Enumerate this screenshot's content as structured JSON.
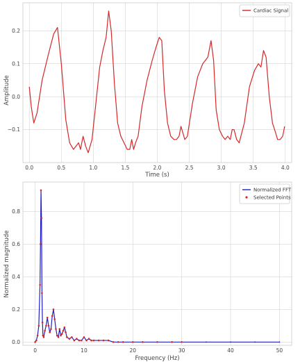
{
  "chart_data": [
    {
      "type": "line",
      "xlabel": "Time (s)",
      "ylabel": "Amplitude",
      "xlim": [
        -0.1,
        4.1
      ],
      "ylim": [
        -0.2,
        0.285
      ],
      "xticks": [
        0.0,
        0.5,
        1.0,
        1.5,
        2.0,
        2.5,
        3.0,
        3.5,
        4.0
      ],
      "xtick_labels": [
        "0.0",
        "0.5",
        "1.0",
        "1.5",
        "2.0",
        "2.5",
        "3.0",
        "3.5",
        "4.0"
      ],
      "yticks": [
        -0.1,
        0.0,
        0.1,
        0.2
      ],
      "ytick_labels": [
        "−0.1",
        "0.0",
        "0.1",
        "0.2"
      ],
      "grid": true,
      "legend_position": "top-right",
      "series": [
        {
          "name": "Cardiac Signal",
          "color": "#d62728",
          "x": [
            0.0,
            0.03,
            0.07,
            0.12,
            0.2,
            0.3,
            0.38,
            0.44,
            0.5,
            0.57,
            0.63,
            0.69,
            0.73,
            0.77,
            0.8,
            0.84,
            0.88,
            0.92,
            0.98,
            1.04,
            1.1,
            1.15,
            1.2,
            1.24,
            1.28,
            1.33,
            1.38,
            1.43,
            1.48,
            1.53,
            1.57,
            1.6,
            1.63,
            1.66,
            1.7,
            1.76,
            1.84,
            1.92,
            1.98,
            2.03,
            2.07,
            2.11,
            2.16,
            2.21,
            2.26,
            2.3,
            2.34,
            2.37,
            2.4,
            2.43,
            2.47,
            2.55,
            2.63,
            2.71,
            2.79,
            2.84,
            2.88,
            2.92,
            2.97,
            3.02,
            3.06,
            3.1,
            3.14,
            3.17,
            3.2,
            3.24,
            3.28,
            3.36,
            3.44,
            3.52,
            3.58,
            3.62,
            3.66,
            3.7,
            3.75,
            3.8,
            3.85,
            3.88,
            3.92,
            3.96,
            3.99
          ],
          "y": [
            0.03,
            -0.03,
            -0.08,
            -0.05,
            0.05,
            0.13,
            0.19,
            0.21,
            0.1,
            -0.07,
            -0.14,
            -0.16,
            -0.15,
            -0.14,
            -0.16,
            -0.12,
            -0.15,
            -0.17,
            -0.13,
            -0.02,
            0.09,
            0.14,
            0.18,
            0.26,
            0.2,
            0.04,
            -0.08,
            -0.12,
            -0.14,
            -0.16,
            -0.16,
            -0.13,
            -0.16,
            -0.14,
            -0.12,
            -0.03,
            0.05,
            0.11,
            0.15,
            0.18,
            0.17,
            0.02,
            -0.08,
            -0.12,
            -0.13,
            -0.13,
            -0.12,
            -0.09,
            -0.11,
            -0.13,
            -0.12,
            -0.02,
            0.06,
            0.1,
            0.12,
            0.17,
            0.11,
            -0.04,
            -0.1,
            -0.12,
            -0.13,
            -0.12,
            -0.13,
            -0.1,
            -0.1,
            -0.13,
            -0.14,
            -0.08,
            0.03,
            0.08,
            0.1,
            0.09,
            0.14,
            0.12,
            0.0,
            -0.08,
            -0.11,
            -0.13,
            -0.13,
            -0.12,
            -0.09
          ]
        }
      ]
    },
    {
      "type": "line",
      "xlabel": "Frequency (Hz)",
      "ylabel": "Normalized magnitude",
      "xlim": [
        -2.5,
        52.5
      ],
      "ylim": [
        -0.02,
        0.98
      ],
      "xticks": [
        0,
        10,
        20,
        30,
        40,
        50
      ],
      "xtick_labels": [
        "0",
        "10",
        "20",
        "30",
        "40",
        "50"
      ],
      "yticks": [
        0.0,
        0.2,
        0.4,
        0.6,
        0.8
      ],
      "ytick_labels": [
        "0.0",
        "0.2",
        "0.4",
        "0.6",
        "0.8"
      ],
      "grid": true,
      "legend_position": "top-right",
      "series": [
        {
          "name": "Normalized FFT",
          "color": "#1f1fbf",
          "x": [
            0,
            0.25,
            0.5,
            0.75,
            1.0,
            1.1,
            1.2,
            1.3,
            1.4,
            1.5,
            1.6,
            1.75,
            2.0,
            2.25,
            2.5,
            2.75,
            3.0,
            3.25,
            3.5,
            3.75,
            4.0,
            4.25,
            4.5,
            4.75,
            5.0,
            5.25,
            5.5,
            5.75,
            6.0,
            6.25,
            6.5,
            7.0,
            7.5,
            8.0,
            8.5,
            9.0,
            9.5,
            10.0,
            10.5,
            11.0,
            11.5,
            12.0,
            13.0,
            14.0,
            15.0,
            16.0,
            17.0,
            18.0,
            20.0,
            22.0,
            25.0,
            28.0,
            30.0,
            35.0,
            40.0,
            45.0,
            50.0
          ],
          "y": [
            0.0,
            0.01,
            0.04,
            0.1,
            0.35,
            0.6,
            0.93,
            0.76,
            0.3,
            0.12,
            0.04,
            0.03,
            0.07,
            0.1,
            0.15,
            0.1,
            0.06,
            0.08,
            0.16,
            0.2,
            0.14,
            0.08,
            0.04,
            0.03,
            0.08,
            0.04,
            0.05,
            0.07,
            0.09,
            0.06,
            0.03,
            0.02,
            0.03,
            0.01,
            0.02,
            0.01,
            0.01,
            0.03,
            0.01,
            0.02,
            0.01,
            0.01,
            0.01,
            0.01,
            0.01,
            0.0,
            0.0,
            0.0,
            0.0,
            0.0,
            0.0,
            0.0,
            0.0,
            0.0,
            0.0,
            0.0,
            0.0
          ]
        },
        {
          "name": "Selected Points",
          "color": "#d62728",
          "marker": "point",
          "x": [
            0,
            0.25,
            0.5,
            0.75,
            1.0,
            1.1,
            1.2,
            1.3,
            1.4,
            1.5,
            1.6,
            1.75,
            2.0,
            2.25,
            2.5,
            2.75,
            3.0,
            3.25,
            3.5,
            3.75,
            4.0,
            4.25,
            4.5,
            4.75,
            5.0,
            5.25,
            5.5,
            5.75,
            6.0,
            6.25,
            6.5,
            7.0,
            7.5,
            8.0,
            8.5,
            9.0,
            9.5,
            10.0,
            10.5,
            11.0,
            11.5,
            12.0,
            13.0,
            14.0,
            15.0,
            16.0,
            17.0,
            18.0,
            20.0,
            22.0,
            25.0,
            28.0,
            30.0
          ],
          "y": [
            0.0,
            0.01,
            0.04,
            0.1,
            0.35,
            0.6,
            0.93,
            0.76,
            0.3,
            0.12,
            0.04,
            0.03,
            0.07,
            0.1,
            0.15,
            0.1,
            0.06,
            0.08,
            0.16,
            0.2,
            0.14,
            0.08,
            0.04,
            0.03,
            0.08,
            0.04,
            0.05,
            0.07,
            0.09,
            0.06,
            0.03,
            0.02,
            0.03,
            0.01,
            0.02,
            0.01,
            0.01,
            0.03,
            0.01,
            0.02,
            0.01,
            0.01,
            0.01,
            0.01,
            0.01,
            0.0,
            0.0,
            0.0,
            0.0,
            0.0,
            0.0,
            0.0,
            0.0
          ]
        }
      ]
    }
  ]
}
